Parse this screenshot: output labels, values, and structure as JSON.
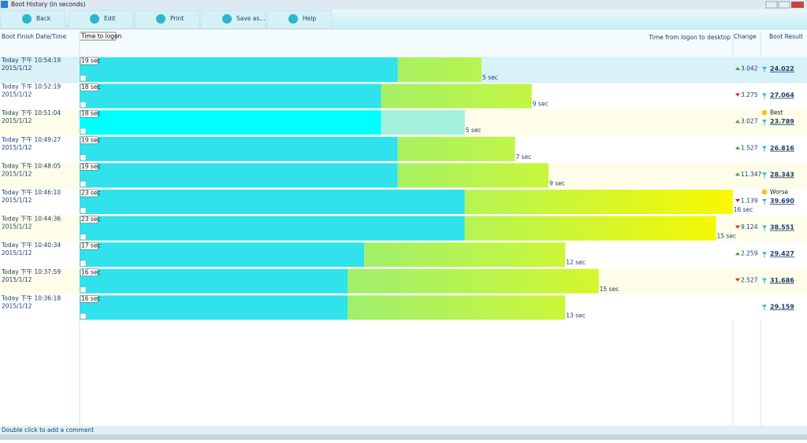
{
  "window_title": "Boot History (in seconds)",
  "toolbar": [
    "Back",
    "Edit",
    "Print",
    "Save as...",
    "Help"
  ],
  "columns": {
    "date": "Boot Finish Date/Time",
    "logon": "Time to logon",
    "desktop": "Time from logon to desktop",
    "change": "Change",
    "result": "Boot Result"
  },
  "rows": [
    {
      "time": "Today  下午 10:54:19",
      "date": "2015/1/12",
      "logon": {
        "value": 19,
        "label": "19 sec"
      },
      "desktop": {
        "value": 5,
        "label": "5 sec"
      },
      "change": "3.042",
      "direction": "up",
      "result": "24.022",
      "selected": true
    },
    {
      "time": "Today  下午 10:52:19",
      "date": "2015/1/12",
      "logon": {
        "value": 18,
        "label": "18 sec"
      },
      "desktop": {
        "value": 9,
        "label": "9 sec"
      },
      "change": "3.275",
      "direction": "down",
      "result": "27.064"
    },
    {
      "time": "Today  下午 10:51:04",
      "date": "2015/1/12",
      "logon": {
        "value": 18,
        "label": "18 sec"
      },
      "desktop": {
        "value": 5,
        "label": "5 sec"
      },
      "change": "3.027",
      "direction": "up",
      "result": "23.789",
      "note": "Best",
      "highlight": true
    },
    {
      "time": "Today  下午 10:49:27",
      "date": "2015/1/12",
      "logon": {
        "value": 19,
        "label": "19 sec"
      },
      "desktop": {
        "value": 7,
        "label": "7 sec"
      },
      "change": "1.527",
      "direction": "up",
      "result": "26.816"
    },
    {
      "time": "Today  下午 10:48:05",
      "date": "2015/1/12",
      "logon": {
        "value": 19,
        "label": "19 sec"
      },
      "desktop": {
        "value": 9,
        "label": "9 sec"
      },
      "change": "11.347",
      "direction": "up",
      "result": "28.343"
    },
    {
      "time": "Today  下午 10:46:10",
      "date": "2015/1/12",
      "logon": {
        "value": 23,
        "label": "23 sec"
      },
      "desktop": {
        "value": 16,
        "label": "16 sec"
      },
      "change": "1.139",
      "direction": "down",
      "result": "39.690",
      "note": "Worse"
    },
    {
      "time": "Today  下午 10:44:36",
      "date": "2015/1/12",
      "logon": {
        "value": 23,
        "label": "23 sec"
      },
      "desktop": {
        "value": 15,
        "label": "15 sec"
      },
      "change": "9.124",
      "direction": "down",
      "result": "38.551"
    },
    {
      "time": "Today  下午 10:40:34",
      "date": "2015/1/12",
      "logon": {
        "value": 17,
        "label": "17 sec"
      },
      "desktop": {
        "value": 12,
        "label": "12 sec"
      },
      "change": "2.259",
      "direction": "up",
      "result": "29.427"
    },
    {
      "time": "Today  下午 10:37:59",
      "date": "2015/1/12",
      "logon": {
        "value": 16,
        "label": "16 sec"
      },
      "desktop": {
        "value": 15,
        "label": "15 sec"
      },
      "change": "2.527",
      "direction": "down",
      "result": "31.686"
    },
    {
      "time": "Today  下午 10:36:18",
      "date": "2015/1/12",
      "logon": {
        "value": 16,
        "label": "16 sec"
      },
      "desktop": {
        "value": 13,
        "label": "13 sec"
      },
      "result": "29.159"
    }
  ],
  "footer": "Double click to add a comment"
}
